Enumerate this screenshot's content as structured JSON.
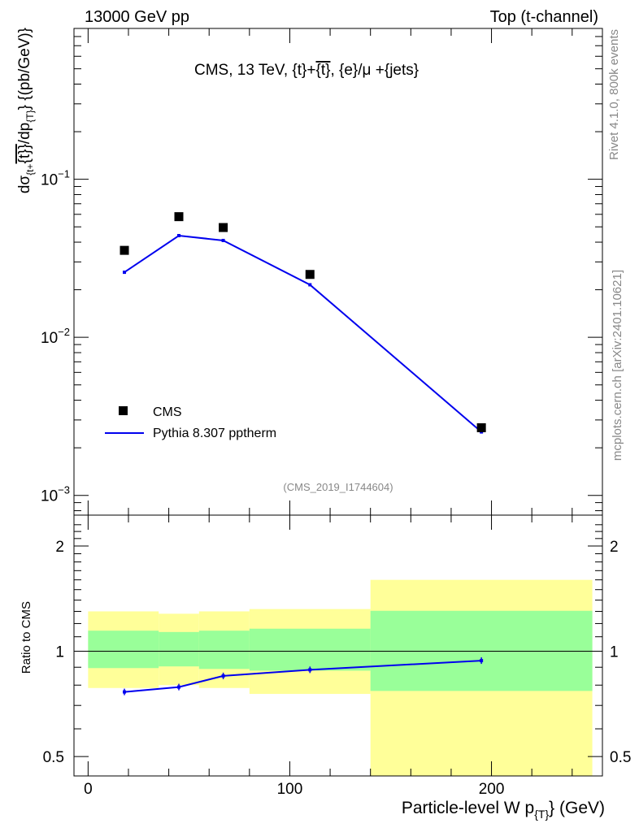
{
  "header": {
    "left": "13000 GeV pp",
    "right": "Top (t-channel)"
  },
  "chart_data": {
    "type": "line",
    "title": "CMS, 13 TeV, {t}+{t}, {e}/μ +{jets}",
    "title_parts": {
      "a": "CMS, 13 TeV, {t}+",
      "b": "{t}",
      "c": ", {e}/μ +{jets}"
    },
    "analysis_label": "(CMS_2019_I1744604)",
    "side_labels": {
      "rivet": "Rivet 4.1.0,  800k events",
      "mcplots": "mcplots.cern.ch [arXiv:2401.10621]"
    },
    "ylabel_parts": {
      "a": "dσ",
      "b": "{t+",
      "c": "{t}}",
      "d": "/dp",
      "e": "{T}",
      "f": "}  {(pb/GeV)}"
    },
    "xlabel_parts": {
      "a": "Particle-level W p",
      "b": "{T}",
      "c": "} (GeV)"
    },
    "ratio_ylabel": "Ratio to CMS",
    "xlim": [
      -7,
      255
    ],
    "ylim_main": [
      0.00075,
      0.9
    ],
    "ylim_ratio": [
      0.44,
      2.45
    ],
    "x_ticks": [
      {
        "value": 0,
        "label": "0"
      },
      {
        "value": 100,
        "label": "100"
      },
      {
        "value": 200,
        "label": "200"
      }
    ],
    "y_ticks_main": [
      {
        "value": 0.1,
        "base": "10",
        "exp": "−1"
      },
      {
        "value": 0.01,
        "base": "10",
        "exp": "−2"
      },
      {
        "value": 0.001,
        "base": "10",
        "exp": "−3"
      }
    ],
    "y_ticks_ratio": [
      {
        "value": 0.5,
        "label": "0.5"
      },
      {
        "value": 1,
        "label": "1"
      },
      {
        "value": 2,
        "label": "2"
      }
    ],
    "bins": [
      {
        "lo": 0,
        "hi": 35
      },
      {
        "lo": 35,
        "hi": 55
      },
      {
        "lo": 55,
        "hi": 80
      },
      {
        "lo": 80,
        "hi": 140
      },
      {
        "lo": 140,
        "hi": 250
      }
    ],
    "series": [
      {
        "name": "CMS",
        "kind": "data",
        "color": "#000000",
        "x": [
          18,
          45,
          67,
          110,
          195
        ],
        "y": [
          0.0355,
          0.058,
          0.0495,
          0.025,
          0.00268
        ]
      },
      {
        "name": "Pythia 8.307 pptherm",
        "kind": "mc",
        "color": "#0000ee",
        "x": [
          18,
          45,
          67,
          110,
          195
        ],
        "y": [
          0.0258,
          0.044,
          0.041,
          0.0215,
          0.00252
        ],
        "ratio": [
          0.765,
          0.79,
          0.85,
          0.885,
          0.94
        ]
      }
    ],
    "uncertainty_bands": {
      "yellow": {
        "color": "#ffff99",
        "lo": [
          0.785,
          0.8,
          0.785,
          0.755,
          0.44
        ],
        "hi": [
          1.3,
          1.28,
          1.3,
          1.32,
          1.6
        ]
      },
      "green": {
        "color": "#99ff99",
        "lo": [
          0.895,
          0.905,
          0.89,
          0.88,
          0.77
        ],
        "hi": [
          1.145,
          1.135,
          1.145,
          1.16,
          1.305
        ]
      }
    }
  }
}
